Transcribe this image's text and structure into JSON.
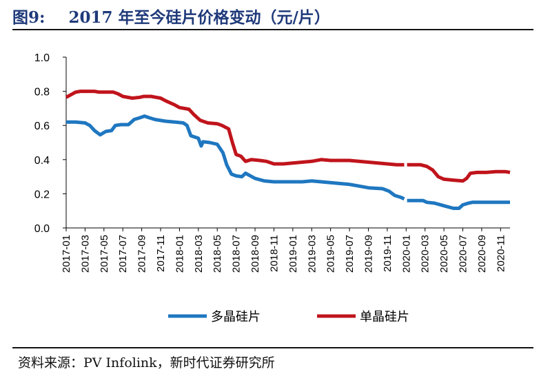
{
  "figure": {
    "number": "图9:",
    "title": "2017 年至今硅片价格变动（元/片）",
    "source": "资料来源：PV Infolink，新时代证券研究所"
  },
  "chart_data": {
    "type": "line",
    "yticks": [
      "1.0",
      "0.8",
      "0.6",
      "0.4",
      "0.2",
      "0.0"
    ],
    "ylim": [
      0,
      1.0
    ],
    "xlim": [
      0,
      47
    ],
    "xticks": [
      {
        "x": 0,
        "label": "2017-01"
      },
      {
        "x": 2,
        "label": "2017-03"
      },
      {
        "x": 4,
        "label": "2017-05"
      },
      {
        "x": 6,
        "label": "2017-07"
      },
      {
        "x": 8,
        "label": "2017-09"
      },
      {
        "x": 10,
        "label": "2017-11"
      },
      {
        "x": 12,
        "label": "2018-01"
      },
      {
        "x": 14,
        "label": "2018-03"
      },
      {
        "x": 16,
        "label": "2018-05"
      },
      {
        "x": 18,
        "label": "2018-07"
      },
      {
        "x": 20,
        "label": "2018-09"
      },
      {
        "x": 22,
        "label": "2018-11"
      },
      {
        "x": 24,
        "label": "2019-01"
      },
      {
        "x": 26,
        "label": "2019-03"
      },
      {
        "x": 28,
        "label": "2019-05"
      },
      {
        "x": 30,
        "label": "2019-07"
      },
      {
        "x": 32,
        "label": "2019-09"
      },
      {
        "x": 34,
        "label": "2019-11"
      },
      {
        "x": 36,
        "label": "2020-01"
      },
      {
        "x": 38,
        "label": "2020-03"
      },
      {
        "x": 40,
        "label": "2020-05"
      },
      {
        "x": 42,
        "label": "2020-07"
      },
      {
        "x": 44,
        "label": "2020-09"
      },
      {
        "x": 46,
        "label": "2020-11"
      }
    ],
    "legend_position": "bottom",
    "grid": false,
    "series": [
      {
        "name": "多晶硅片",
        "color": "#1f77c0",
        "points": [
          [
            0.0,
            0.62
          ],
          [
            1.0,
            0.62
          ],
          [
            2.0,
            0.615
          ],
          [
            2.5,
            0.6
          ],
          [
            3.0,
            0.57
          ],
          [
            3.6,
            0.545
          ],
          [
            4.2,
            0.565
          ],
          [
            4.8,
            0.57
          ],
          [
            5.2,
            0.6
          ],
          [
            5.8,
            0.605
          ],
          [
            6.6,
            0.605
          ],
          [
            7.2,
            0.635
          ],
          [
            7.8,
            0.645
          ],
          [
            8.3,
            0.655
          ],
          [
            8.8,
            0.645
          ],
          [
            9.4,
            0.635
          ],
          [
            10.5,
            0.625
          ],
          [
            11.5,
            0.62
          ],
          [
            12.4,
            0.615
          ],
          [
            12.8,
            0.6
          ],
          [
            13.2,
            0.54
          ],
          [
            14.0,
            0.525
          ],
          [
            14.3,
            0.48
          ],
          [
            14.5,
            0.505
          ],
          [
            15.2,
            0.5
          ],
          [
            16.0,
            0.49
          ],
          [
            16.6,
            0.44
          ],
          [
            17.0,
            0.37
          ],
          [
            17.5,
            0.315
          ],
          [
            18.0,
            0.305
          ],
          [
            18.6,
            0.3
          ],
          [
            19.0,
            0.32
          ],
          [
            20.0,
            0.29
          ],
          [
            21.0,
            0.275
          ],
          [
            22.0,
            0.27
          ],
          [
            23.0,
            0.27
          ],
          [
            24.0,
            0.27
          ],
          [
            25.0,
            0.27
          ],
          [
            26.0,
            0.275
          ],
          [
            27.0,
            0.27
          ],
          [
            28.0,
            0.265
          ],
          [
            29.0,
            0.26
          ],
          [
            30.0,
            0.255
          ],
          [
            31.0,
            0.245
          ],
          [
            32.0,
            0.235
          ],
          [
            33.5,
            0.23
          ],
          [
            34.2,
            0.215
          ],
          [
            34.8,
            0.19
          ],
          [
            35.4,
            0.18
          ],
          [
            35.8,
            0.17
          ],
          null,
          [
            36.1,
            0.16
          ],
          [
            37.8,
            0.16
          ],
          [
            38.2,
            0.15
          ],
          [
            39.0,
            0.145
          ],
          [
            40.0,
            0.13
          ],
          [
            41.0,
            0.115
          ],
          [
            41.6,
            0.115
          ],
          [
            42.0,
            0.135
          ],
          [
            42.6,
            0.145
          ],
          [
            43.0,
            0.15
          ],
          [
            44.0,
            0.15
          ],
          [
            45.0,
            0.15
          ],
          [
            46.0,
            0.15
          ],
          [
            47.0,
            0.15
          ]
        ]
      },
      {
        "name": "单晶硅片",
        "color": "#c0141c",
        "points": [
          [
            0.0,
            0.765
          ],
          [
            0.5,
            0.78
          ],
          [
            1.0,
            0.795
          ],
          [
            1.5,
            0.8
          ],
          [
            2.0,
            0.8
          ],
          [
            3.0,
            0.8
          ],
          [
            3.5,
            0.795
          ],
          [
            5.0,
            0.795
          ],
          [
            5.5,
            0.785
          ],
          [
            6.0,
            0.77
          ],
          [
            7.0,
            0.76
          ],
          [
            7.8,
            0.765
          ],
          [
            8.2,
            0.77
          ],
          [
            9.0,
            0.77
          ],
          [
            9.5,
            0.765
          ],
          [
            10.0,
            0.76
          ],
          [
            10.5,
            0.745
          ],
          [
            11.5,
            0.72
          ],
          [
            12.0,
            0.705
          ],
          [
            13.0,
            0.695
          ],
          [
            13.5,
            0.665
          ],
          [
            14.2,
            0.63
          ],
          [
            15.0,
            0.615
          ],
          [
            16.0,
            0.61
          ],
          [
            16.5,
            0.6
          ],
          [
            17.2,
            0.58
          ],
          [
            17.6,
            0.5
          ],
          [
            18.0,
            0.43
          ],
          [
            18.5,
            0.42
          ],
          [
            19.0,
            0.39
          ],
          [
            19.6,
            0.4
          ],
          [
            20.5,
            0.395
          ],
          [
            21.2,
            0.39
          ],
          [
            22.0,
            0.375
          ],
          [
            23.0,
            0.375
          ],
          [
            24.0,
            0.38
          ],
          [
            25.0,
            0.385
          ],
          [
            26.0,
            0.39
          ],
          [
            27.0,
            0.4
          ],
          [
            28.0,
            0.395
          ],
          [
            29.0,
            0.395
          ],
          [
            30.0,
            0.395
          ],
          [
            31.0,
            0.39
          ],
          [
            32.0,
            0.385
          ],
          [
            33.0,
            0.38
          ],
          [
            34.0,
            0.375
          ],
          [
            35.0,
            0.37
          ],
          [
            35.8,
            0.37
          ],
          null,
          [
            36.1,
            0.37
          ],
          [
            37.5,
            0.37
          ],
          [
            38.2,
            0.36
          ],
          [
            38.8,
            0.34
          ],
          [
            39.4,
            0.3
          ],
          [
            40.0,
            0.285
          ],
          [
            41.0,
            0.28
          ],
          [
            42.0,
            0.275
          ],
          [
            42.4,
            0.29
          ],
          [
            42.8,
            0.32
          ],
          [
            43.5,
            0.325
          ],
          [
            44.5,
            0.325
          ],
          [
            45.5,
            0.33
          ],
          [
            46.5,
            0.33
          ],
          [
            47.0,
            0.325
          ]
        ]
      }
    ]
  }
}
